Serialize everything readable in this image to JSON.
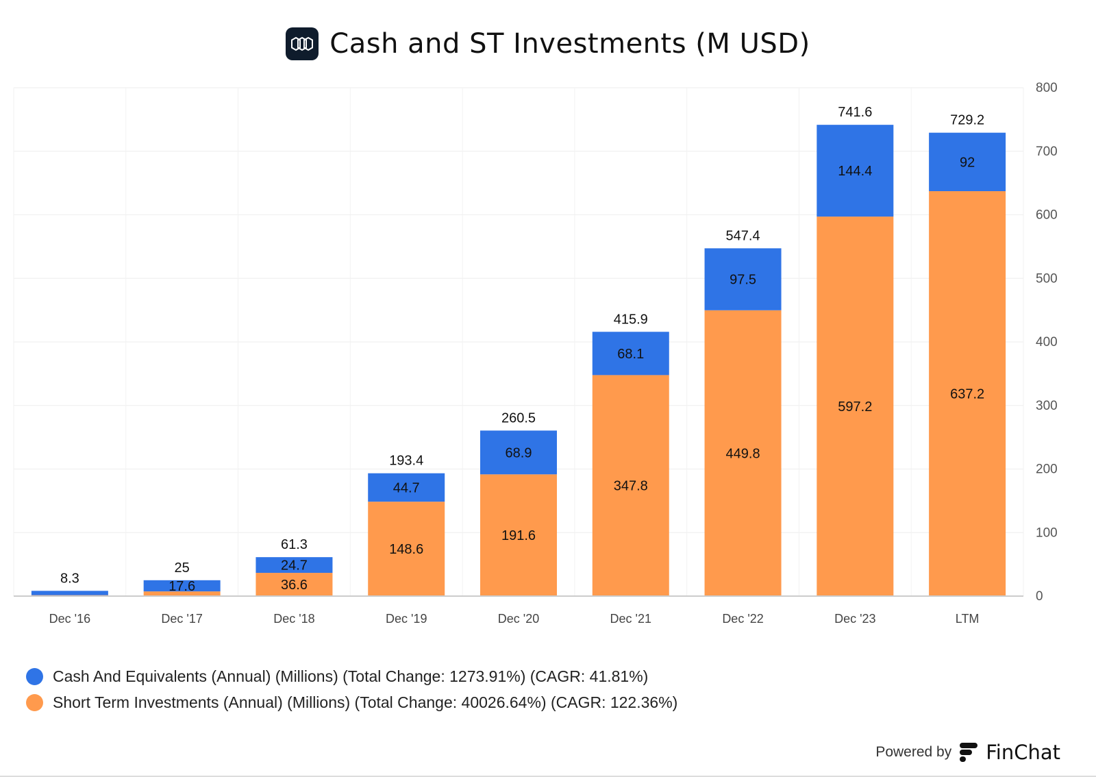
{
  "header": {
    "title": "Cash and ST Investments (M USD)",
    "logo_icon": "hexagon-chain-logo-icon"
  },
  "chart_data": {
    "type": "bar",
    "stacked": true,
    "categories": [
      "Dec '16",
      "Dec '17",
      "Dec '18",
      "Dec '19",
      "Dec '20",
      "Dec '21",
      "Dec '22",
      "Dec '23",
      "LTM"
    ],
    "series": [
      {
        "name": "Short Term Investments (Annual) (Millions) (Total Change: 40026.64%) (CAGR: 122.36%)",
        "color": "#ff9a4d",
        "values": [
          1.5,
          7.4,
          36.6,
          148.6,
          191.6,
          347.8,
          449.8,
          597.2,
          637.2
        ],
        "labels": [
          "",
          "",
          "36.6",
          "148.6",
          "191.6",
          "347.8",
          "449.8",
          "597.2",
          "637.2"
        ]
      },
      {
        "name": "Cash And Equivalents (Annual) (Millions) (Total Change: 1273.91%) (CAGR: 41.81%)",
        "color": "#2f74e6",
        "values": [
          6.8,
          17.6,
          24.7,
          44.7,
          68.9,
          68.1,
          97.5,
          144.4,
          92
        ],
        "labels": [
          "",
          "17.6",
          "24.7",
          "44.7",
          "68.9",
          "68.1",
          "97.5",
          "144.4",
          "92"
        ]
      }
    ],
    "totals": [
      "8.3",
      "25",
      "61.3",
      "193.4",
      "260.5",
      "415.9",
      "547.4",
      "741.6",
      "729.2"
    ],
    "y_ticks": [
      "0",
      "100",
      "200",
      "300",
      "400",
      "500",
      "600",
      "700",
      "800"
    ],
    "ylim": [
      0,
      800
    ],
    "y_axis_side": "right",
    "grid": true,
    "legend_position": "bottom-left"
  },
  "legend": {
    "items": [
      {
        "label": "Cash And Equivalents (Annual) (Millions) (Total Change: 1273.91%) (CAGR: 41.81%)",
        "color": "#2f74e6"
      },
      {
        "label": "Short Term Investments (Annual) (Millions) (Total Change: 40026.64%) (CAGR: 122.36%)",
        "color": "#ff9a4d"
      }
    ]
  },
  "footer": {
    "powered_by": "Powered by",
    "brand": "FinChat",
    "brand_icon": "finchat-logo-icon"
  }
}
